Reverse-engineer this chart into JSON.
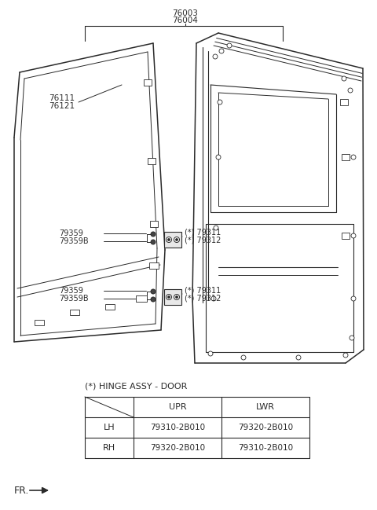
{
  "bg_color": "#ffffff",
  "lc": "#2a2a2a",
  "label_color": "#2a2a2a",
  "title_label": "(*) HINGE ASSY - DOOR",
  "table_rows": [
    [
      "LH",
      "79310-2B010",
      "79320-2B010"
    ],
    [
      "RH",
      "79320-2B010",
      "79310-2B010"
    ]
  ],
  "bracket_label1": "76003",
  "bracket_label2": "76004",
  "outer_panel_label1": "76111",
  "outer_panel_label2": "76121",
  "hinge_upper_label1": "(*) 79311",
  "hinge_upper_label2": "(*) 79312",
  "hinge_lower_label1": "(*) 79311",
  "hinge_lower_label2": "(*) 79312",
  "pin_upper_label1": "79359",
  "pin_upper_label2": "79359B",
  "pin_lower_label1": "79359",
  "pin_lower_label2": "79359B",
  "fr_label": "FR."
}
